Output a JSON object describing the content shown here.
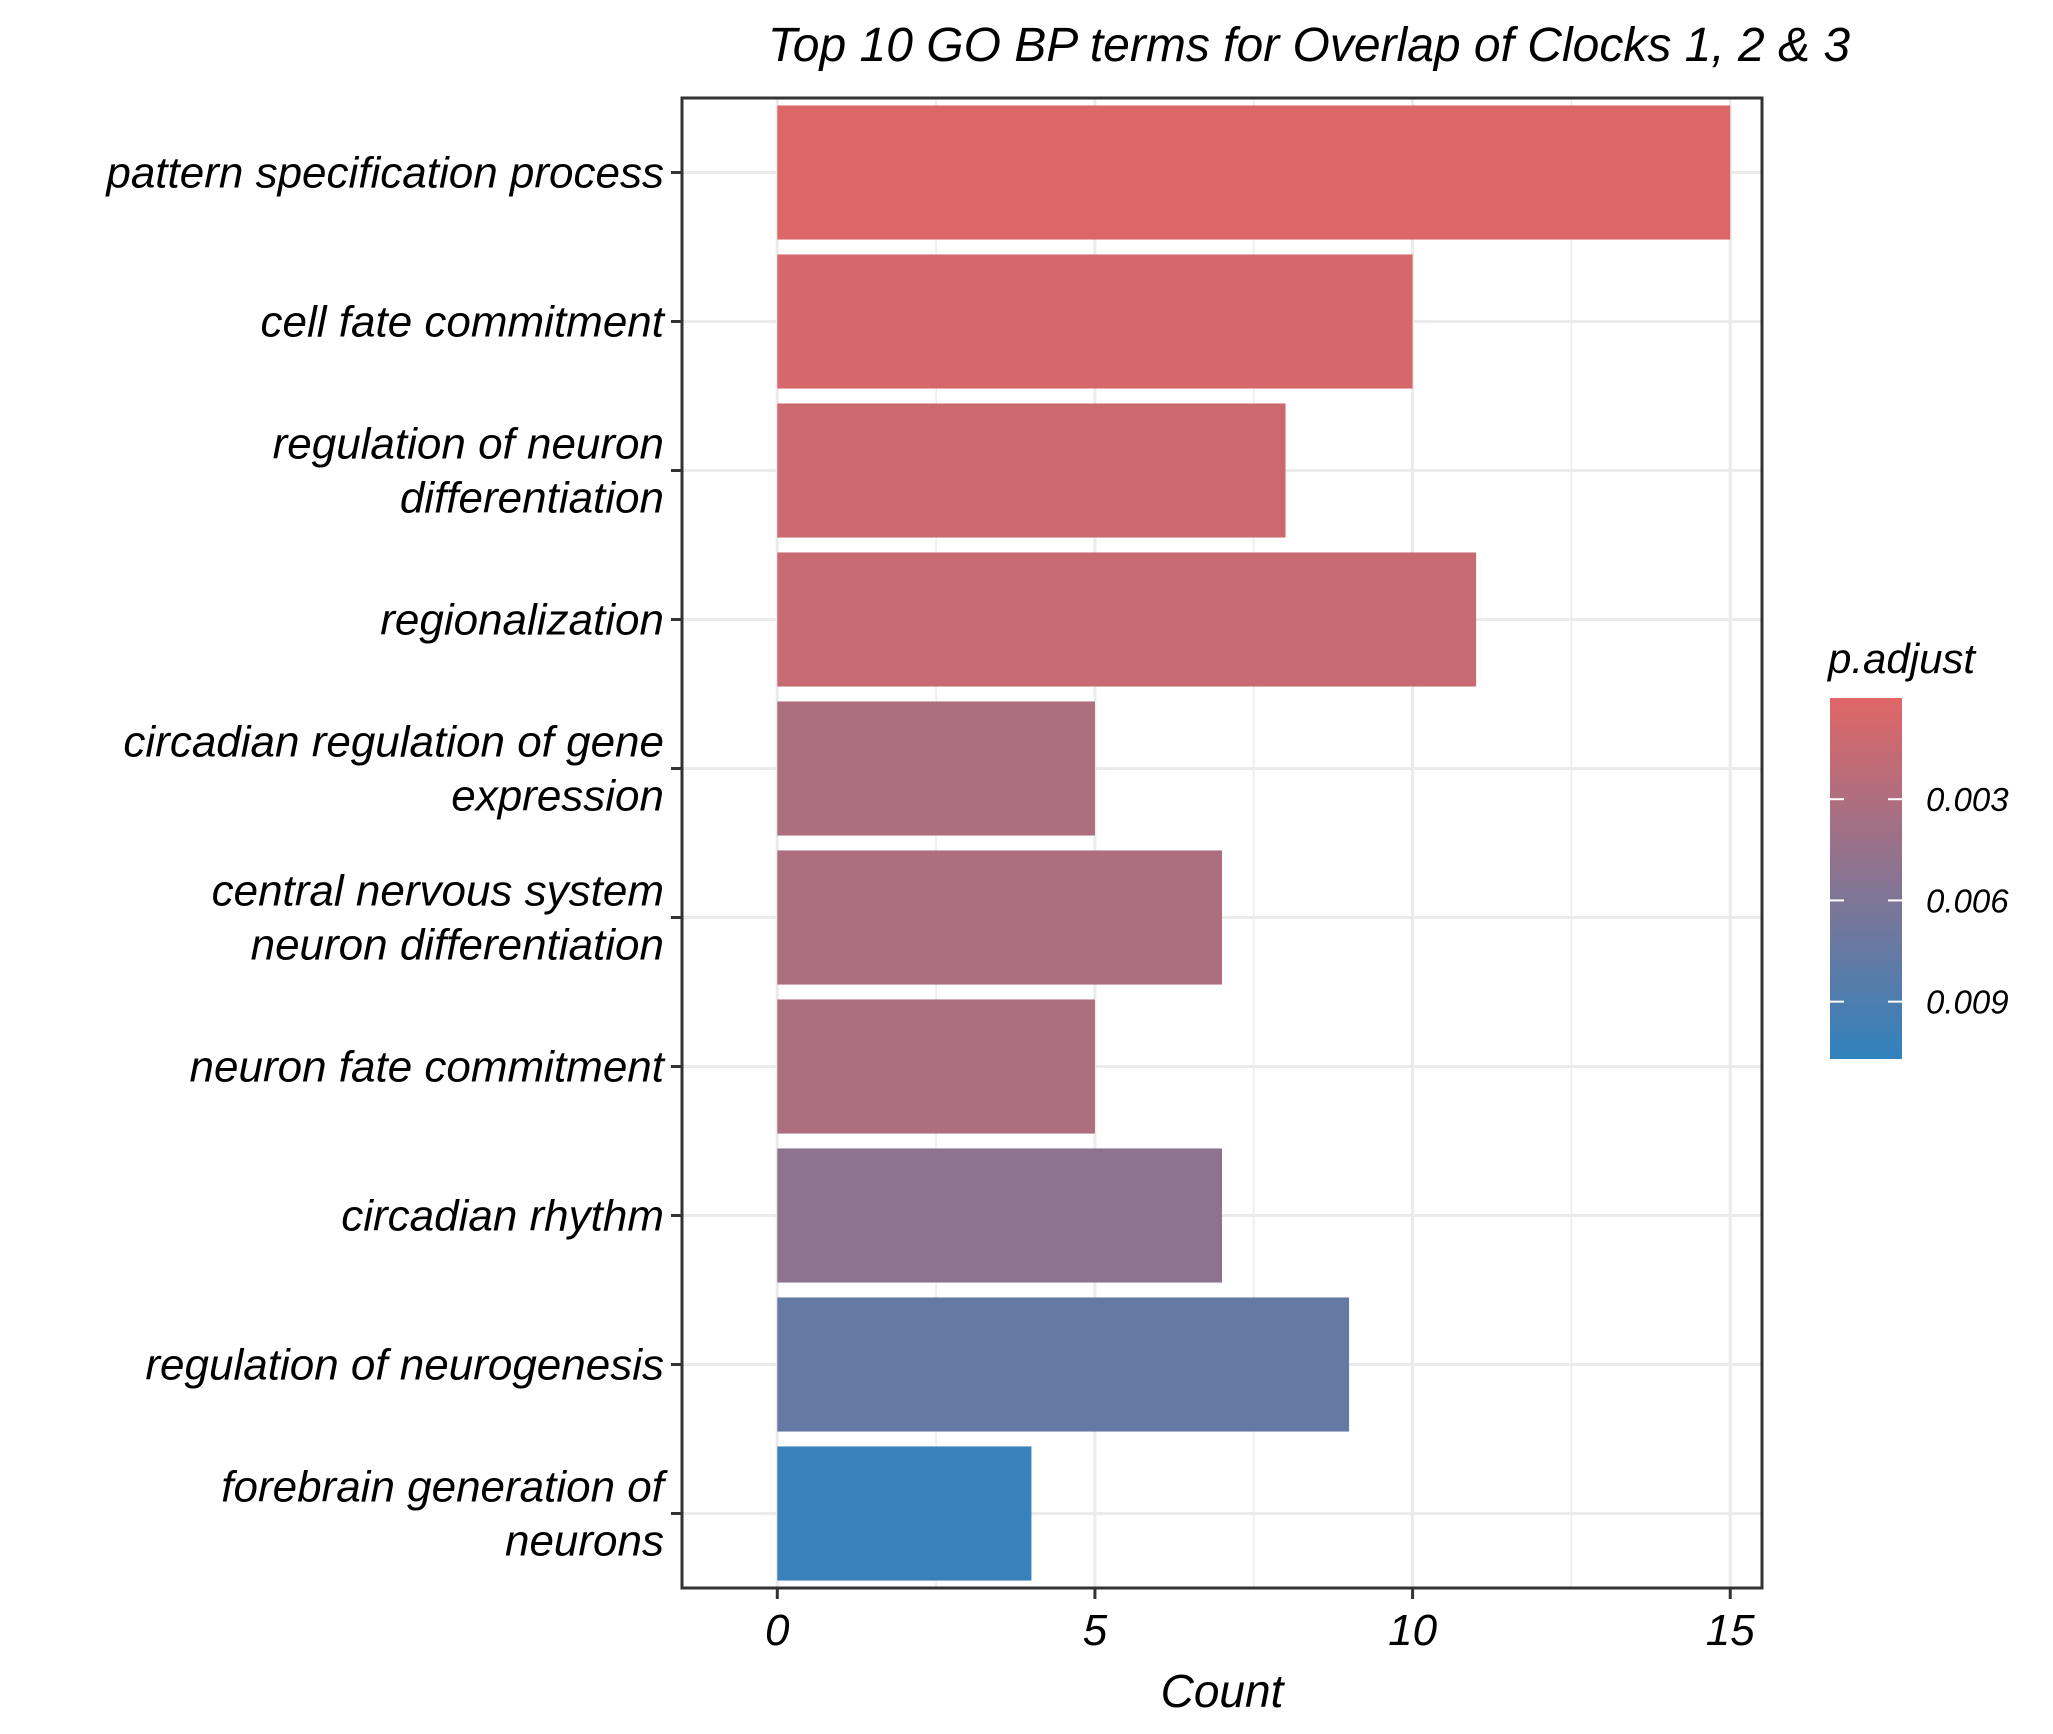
{
  "chart_data": {
    "type": "bar",
    "orientation": "horizontal",
    "title": "Top 10 GO BP terms for Overlap of Clocks 1, 2 & 3",
    "xlabel": "Count",
    "ylabel": "",
    "xlim": [
      -1.5,
      15.5
    ],
    "xticks": [
      0,
      5,
      10,
      15
    ],
    "grid": true,
    "legend_position": "right",
    "categories": [
      [
        "pattern specification process"
      ],
      [
        "cell fate commitment"
      ],
      [
        "regulation of neuron",
        "differentiation"
      ],
      [
        "regionalization"
      ],
      [
        "circadian regulation of gene",
        "expression"
      ],
      [
        "central nervous system",
        "neuron differentiation"
      ],
      [
        "neuron fate commitment"
      ],
      [
        "circadian rhythm"
      ],
      [
        "regulation of neurogenesis"
      ],
      [
        "forebrain generation of",
        "neurons"
      ]
    ],
    "values": [
      15,
      10,
      8,
      11,
      5,
      7,
      5,
      7,
      9,
      4
    ],
    "p_adjust": [
      0.0003,
      0.0006,
      0.0012,
      0.0015,
      0.0031,
      0.0031,
      0.0031,
      0.005,
      0.0076,
      0.0103
    ],
    "colorbar": {
      "title": "p.adjust",
      "low_color": "#e06666",
      "high_color": "#3182bd",
      "range": [
        0.0,
        0.0107
      ],
      "ticks": [
        0.003,
        0.006,
        0.009
      ],
      "tick_labels": [
        "0.003",
        "0.006",
        "0.009"
      ]
    }
  }
}
